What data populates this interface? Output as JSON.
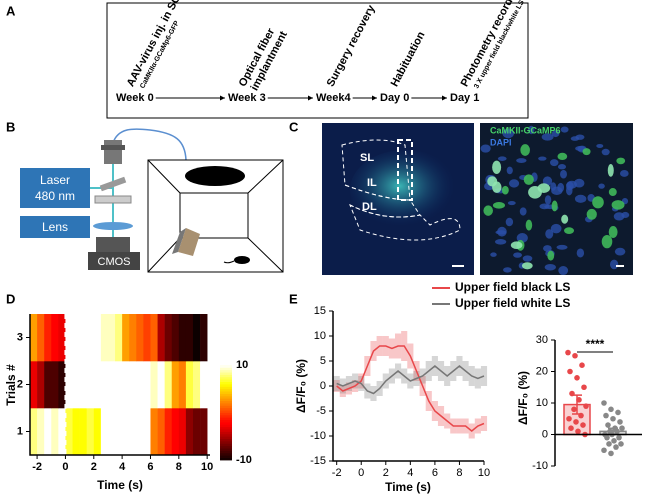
{
  "panel_labels": [
    "A",
    "B",
    "C",
    "D",
    "E"
  ],
  "timeline": {
    "steps": [
      {
        "label": [
          "AAV-virus inj. in SC"
        ],
        "sublabel": "CaMKIIα-GCaMp6-GFP",
        "time": "Week 0"
      },
      {
        "label": [
          "Optical fiber",
          "implantment"
        ],
        "time": "Week 3"
      },
      {
        "label": [
          "Surgery recovery"
        ],
        "time": "Week4"
      },
      {
        "label": [
          "Habituation"
        ],
        "time": "Day 0"
      },
      {
        "label": [
          "Photometry recording"
        ],
        "sublabel": "3 X upper field black/white LS",
        "time": "Day 1"
      }
    ]
  },
  "setup": {
    "laser": [
      "Laser",
      "480 nm"
    ],
    "lens": "Lens",
    "camera": "CMOS"
  },
  "histology": {
    "regions": [
      "SL",
      "IL",
      "DL"
    ],
    "stains": [
      "CaMKII-GCaMP6",
      "DAPI"
    ]
  },
  "chart_data": [
    {
      "type": "heatmap",
      "x_label": "Time (s)",
      "y_label": "Trials #",
      "bins": [
        -2.5,
        -2,
        -1.5,
        -1,
        -0.5,
        0,
        0.5,
        1,
        1.5,
        2,
        2.5,
        3,
        3.5,
        4,
        4.5,
        5,
        5.5,
        6,
        6.5,
        7,
        7.5,
        8,
        8.5,
        9,
        9.5,
        10
      ],
      "rows": [
        [
          8,
          9,
          10,
          9,
          10,
          7,
          6,
          6,
          7,
          6,
          10,
          10,
          10,
          10,
          10,
          10,
          10,
          2,
          1,
          -1,
          -2,
          -3,
          -6,
          -7,
          -7
        ],
        [
          -3,
          -5,
          -8,
          -8,
          -9,
          10,
          10,
          10,
          10,
          10,
          10,
          10,
          10,
          10,
          10,
          10,
          10,
          9,
          10,
          8,
          3,
          2,
          7,
          8,
          10
        ],
        [
          3,
          1,
          -1,
          -2,
          -3,
          10,
          10,
          10,
          10,
          10,
          9,
          9,
          8,
          3,
          2,
          1,
          0,
          1,
          -5,
          -7,
          -8,
          -9,
          -9,
          -10,
          -9
        ]
      ],
      "xlim": [
        -2.5,
        10.2
      ],
      "xticks": [
        -2,
        0,
        2,
        4,
        6,
        8,
        10
      ],
      "ylim": [
        0.5,
        3.5
      ],
      "yticks": [
        1,
        2,
        3
      ],
      "clim": [
        -10,
        10
      ],
      "cticks": [
        10,
        -10
      ],
      "colormap": "hot",
      "marker_line": 0
    },
    {
      "type": "line",
      "x_label": "Time (s)",
      "y_label": "ΔF/F₀ (%)",
      "x": [
        -2,
        -1.5,
        -1,
        -0.5,
        0,
        0.5,
        1,
        1.5,
        2,
        2.5,
        3,
        3.5,
        4,
        4.5,
        5,
        5.5,
        6,
        6.5,
        7,
        7.5,
        8,
        8.5,
        9,
        9.5,
        10
      ],
      "series": [
        {
          "name": "Upper field black LS",
          "color": "#e8474a",
          "values": [
            0,
            -1,
            -0.5,
            0,
            1,
            4,
            7,
            8,
            8,
            7.5,
            8,
            8,
            6,
            3,
            0,
            -3,
            -5,
            -6,
            -7,
            -8,
            -8,
            -8,
            -9,
            -8,
            -7.5
          ],
          "error": [
            1.2,
            1.2,
            1.2,
            1.2,
            1.5,
            2,
            2,
            2,
            2,
            2,
            2.5,
            3,
            2.5,
            2,
            2,
            2,
            2,
            2,
            1.5,
            1.5,
            1.5,
            1.5,
            1.5,
            1.5,
            1.5
          ]
        },
        {
          "name": "Upper field white LS",
          "color": "#777777",
          "values": [
            0.5,
            0,
            0.5,
            1,
            0.5,
            -1,
            -1.5,
            -0.5,
            1,
            2,
            3,
            2,
            1,
            1.5,
            2,
            3,
            4,
            3,
            2,
            3,
            4,
            3,
            2,
            1.5,
            2
          ],
          "error": [
            1.5,
            1.5,
            1.5,
            1.5,
            1.5,
            1.5,
            1.5,
            1.5,
            1.5,
            1.5,
            1.5,
            1.5,
            1.5,
            1.5,
            1.5,
            2,
            2,
            2,
            2,
            2,
            2,
            2,
            2,
            2,
            2
          ]
        }
      ],
      "xlim": [
        -2.3,
        10
      ],
      "xticks": [
        -2,
        0,
        2,
        4,
        6,
        8,
        10
      ],
      "ylim": [
        -15,
        15
      ],
      "yticks": [
        -15,
        -10,
        -5,
        0,
        5,
        10,
        15
      ],
      "legend": "top"
    },
    {
      "type": "bar_scatter",
      "y_label": "ΔF/F₀ (%)",
      "significance": "****",
      "series": [
        {
          "color": "#e8474a",
          "mean": 9.5,
          "error": 3,
          "values": [
            26,
            25,
            22,
            20,
            18,
            15,
            13,
            11,
            9,
            8,
            6,
            5,
            4,
            3,
            2,
            1,
            0
          ]
        },
        {
          "color": "#888888",
          "mean": 1,
          "error": 1,
          "values": [
            10,
            8,
            7,
            6,
            5,
            4,
            3,
            2,
            2,
            1,
            1,
            0,
            0,
            -1,
            -1,
            -2,
            -3,
            -3,
            -4,
            -5,
            -6
          ]
        }
      ],
      "ylim": [
        -10,
        30
      ],
      "yticks": [
        -10,
        0,
        10,
        20,
        30
      ]
    }
  ]
}
